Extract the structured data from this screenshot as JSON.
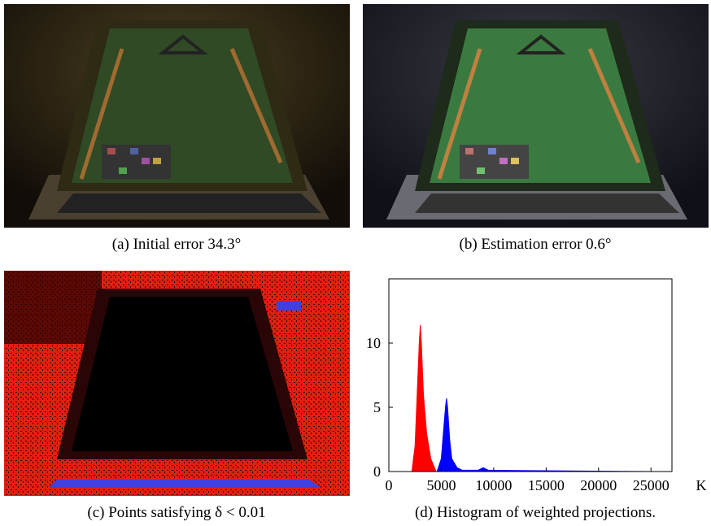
{
  "captions": [
    "(a) Initial error 34.3°",
    "(b) Estimation error 0.6°",
    "(c) Points satisfying δ < 0.01",
    "(d) Histogram of weighted projections."
  ],
  "chart_data": {
    "type": "area",
    "xlabel": "K",
    "xlim": [
      0,
      27000
    ],
    "ylim": [
      0,
      15
    ],
    "xticks": [
      0,
      5000,
      10000,
      15000,
      20000,
      25000
    ],
    "yticks": [
      0,
      5,
      10
    ],
    "series": [
      {
        "color": "#ff0000",
        "x": [
          2200,
          2500,
          2700,
          2900,
          3000,
          3100,
          3300,
          3600,
          4000,
          4500
        ],
        "values": [
          0,
          2,
          6,
          10,
          11.4,
          10,
          6,
          3,
          1,
          0
        ]
      },
      {
        "color": "#0000ff",
        "x": [
          4600,
          5000,
          5200,
          5400,
          5500,
          5600,
          5800,
          6000,
          6500,
          7000,
          8500,
          9000,
          9500,
          25000
        ],
        "values": [
          0,
          1,
          3,
          5,
          5.7,
          5,
          2.5,
          1,
          0.3,
          0.1,
          0.1,
          0.3,
          0.1,
          0
        ]
      }
    ]
  }
}
